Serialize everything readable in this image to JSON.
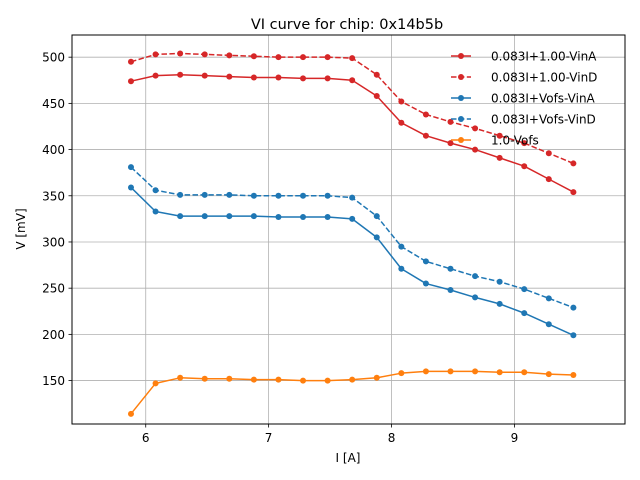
{
  "chart_data": {
    "type": "line",
    "title": "VI curve for chip: 0x14b5b",
    "xlabel": "I [A]",
    "ylabel": "V [mV]",
    "xlim": [
      5.4,
      9.9
    ],
    "ylim": [
      103,
      524
    ],
    "xticks": [
      6,
      7,
      8,
      9
    ],
    "yticks": [
      150,
      200,
      250,
      300,
      350,
      400,
      450,
      500
    ],
    "grid": true,
    "legend_position": "top-right",
    "x": [
      5.88,
      6.08,
      6.28,
      6.48,
      6.68,
      6.88,
      7.08,
      7.28,
      7.48,
      7.68,
      7.88,
      8.08,
      8.28,
      8.48,
      8.68,
      8.88,
      9.08,
      9.28,
      9.48
    ],
    "series": [
      {
        "name": "0.083I+1.00-VinA",
        "color": "#d62728",
        "style": "solid",
        "values": [
          474,
          480,
          481,
          480,
          479,
          478,
          478,
          477,
          477,
          475,
          458,
          429,
          415,
          407,
          400,
          391,
          382,
          368,
          354
        ]
      },
      {
        "name": "0.083I+1.00-VinD",
        "color": "#d62728",
        "style": "dashed",
        "values": [
          495,
          503,
          504,
          503,
          502,
          501,
          500,
          500,
          500,
          499,
          481,
          452,
          438,
          430,
          423,
          415,
          407,
          396,
          385
        ]
      },
      {
        "name": "0.083I+Vofs-VinA",
        "color": "#1f77b4",
        "style": "solid",
        "values": [
          359,
          333,
          328,
          328,
          328,
          328,
          327,
          327,
          327,
          325,
          305,
          271,
          255,
          248,
          240,
          233,
          223,
          211,
          199
        ]
      },
      {
        "name": "0.083I+Vofs-VinD",
        "color": "#1f77b4",
        "style": "dashed",
        "values": [
          381,
          356,
          351,
          351,
          351,
          350,
          350,
          350,
          350,
          348,
          328,
          295,
          279,
          271,
          263,
          257,
          249,
          239,
          229
        ]
      },
      {
        "name": "1.0-Vofs",
        "color": "#ff7f0e",
        "style": "solid",
        "values": [
          114,
          147,
          153,
          152,
          152,
          151,
          151,
          150,
          150,
          151,
          153,
          158,
          160,
          160,
          160,
          159,
          159,
          157,
          156
        ]
      }
    ]
  }
}
